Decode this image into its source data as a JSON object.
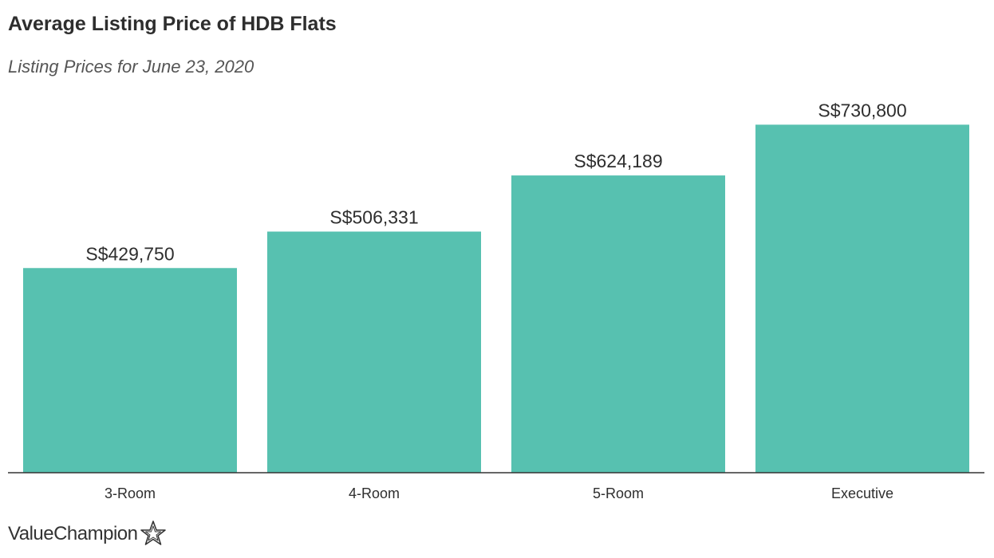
{
  "title": "Average Listing Price of HDB Flats",
  "subtitle": "Listing Prices for June 23, 2020",
  "brand": {
    "name": "ValueChampion",
    "icon": "star-outline-icon"
  },
  "colors": {
    "bar": "#57c1b0",
    "axis": "#333333",
    "text": "#2e2e2e"
  },
  "chart_data": {
    "type": "bar",
    "title": "Average Listing Price of HDB Flats",
    "subtitle": "Listing Prices for June 23, 2020",
    "categories": [
      "3-Room",
      "4-Room",
      "5-Room",
      "Executive"
    ],
    "values": [
      429750,
      506331,
      624189,
      730800
    ],
    "data_labels": [
      "S$429,750",
      "S$506,331",
      "S$624,189",
      "S$730,800"
    ],
    "xlabel": "",
    "ylabel": "",
    "ylim": [
      0,
      775000
    ],
    "grid": false,
    "legend": "none"
  }
}
